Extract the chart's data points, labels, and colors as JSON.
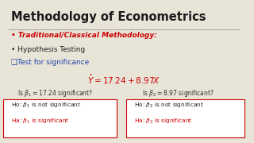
{
  "title": "Methodology of Econometrics",
  "bg_color": "#e8e4d8",
  "title_color": "#1a1a1a",
  "red_color": "#cc0000",
  "blue_color": "#2244aa",
  "black_color": "#222222",
  "dark_color": "#333333",
  "bullet1": "Traditional/Classical Methodology:",
  "bullet2": "Hypothesis Testing",
  "bullet3": "Test for significance",
  "line_color": "#aaaaaa"
}
